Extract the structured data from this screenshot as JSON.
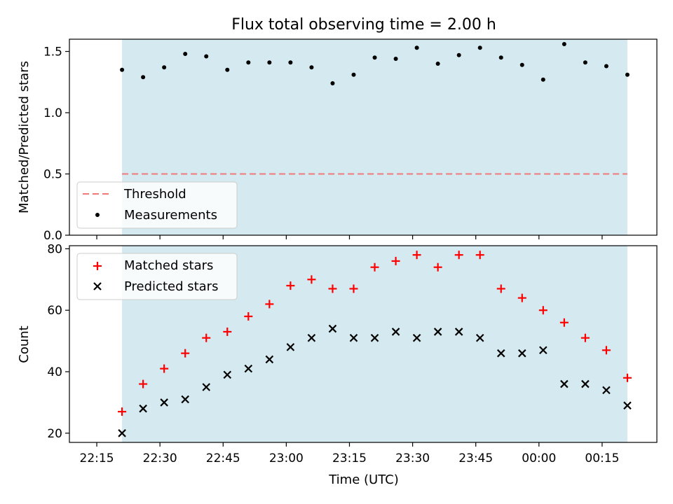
{
  "title": "Flux total observing time = 2.00 h",
  "xlabel": "Time (UTC)",
  "x_tick_labels": [
    "22:15",
    "22:30",
    "22:45",
    "23:00",
    "23:15",
    "23:30",
    "23:45",
    "00:00",
    "00:15"
  ],
  "colors": {
    "shade": "#d4eaf0",
    "threshold": "#f07878",
    "matched": "#ff0000",
    "predicted": "#000000",
    "measurement": "#000000"
  },
  "chart_data": [
    {
      "type": "scatter",
      "ylabel": "Matched/Predicted stars",
      "xlim": [
        "22:08:30",
        "00:28:00"
      ],
      "ylim": [
        0,
        1.6
      ],
      "yticks": [
        "0.0",
        "0.5",
        "1.0",
        "1.5"
      ],
      "ytick_values": [
        0,
        0.5,
        1.0,
        1.5
      ],
      "shaded_span": [
        "22:21",
        "00:21"
      ],
      "threshold": {
        "y": 0.5,
        "x_range": [
          "22:21",
          "00:21"
        ]
      },
      "legend": [
        "Threshold",
        "Measurements"
      ],
      "legend_position": "lower-left",
      "x": [
        "22:21",
        "22:26",
        "22:31",
        "22:36",
        "22:41",
        "22:46",
        "22:51",
        "22:56",
        "23:01",
        "23:06",
        "23:11",
        "23:16",
        "23:21",
        "23:26",
        "23:31",
        "23:36",
        "23:41",
        "23:46",
        "23:51",
        "23:56",
        "00:01",
        "00:06",
        "00:11",
        "00:16",
        "00:21"
      ],
      "values": [
        1.35,
        1.29,
        1.37,
        1.48,
        1.46,
        1.35,
        1.41,
        1.41,
        1.41,
        1.37,
        1.24,
        1.31,
        1.45,
        1.44,
        1.53,
        1.4,
        1.47,
        1.53,
        1.45,
        1.39,
        1.27,
        1.56,
        1.41,
        1.38,
        1.31
      ]
    },
    {
      "type": "scatter",
      "ylabel": "Count",
      "xlim": [
        "22:08:30",
        "00:28:00"
      ],
      "ylim": [
        17,
        81
      ],
      "yticks": [
        "20",
        "40",
        "60",
        "80"
      ],
      "ytick_values": [
        20,
        40,
        60,
        80
      ],
      "shaded_span": [
        "22:21",
        "00:21"
      ],
      "legend_position": "upper-left",
      "x": [
        "22:21",
        "22:26",
        "22:31",
        "22:36",
        "22:41",
        "22:46",
        "22:51",
        "22:56",
        "23:01",
        "23:06",
        "23:11",
        "23:16",
        "23:21",
        "23:26",
        "23:31",
        "23:36",
        "23:41",
        "23:46",
        "23:51",
        "23:56",
        "00:01",
        "00:06",
        "00:11",
        "00:16",
        "00:21"
      ],
      "series": [
        {
          "name": "Matched stars",
          "marker": "+",
          "values": [
            27,
            36,
            41,
            46,
            51,
            53,
            58,
            62,
            68,
            70,
            67,
            67,
            74,
            76,
            78,
            74,
            78,
            78,
            67,
            64,
            60,
            56,
            51,
            47,
            38
          ]
        },
        {
          "name": "Predicted stars",
          "marker": "x",
          "values": [
            20,
            28,
            30,
            31,
            35,
            39,
            41,
            44,
            48,
            51,
            54,
            51,
            51,
            53,
            51,
            53,
            53,
            51,
            46,
            46,
            47,
            36,
            36,
            34,
            29
          ]
        }
      ]
    }
  ]
}
